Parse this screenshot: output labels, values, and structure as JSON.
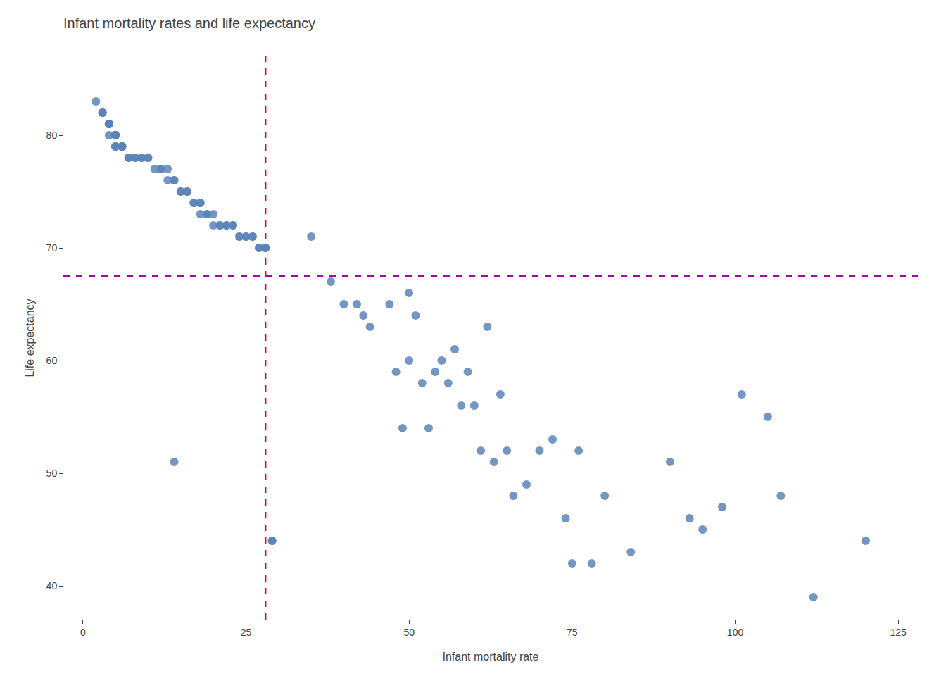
{
  "chart_data": {
    "type": "scatter",
    "title": "Infant mortality rates and life expectancy",
    "xlabel": "Infant mortality rate",
    "ylabel": "Life expectancy",
    "color": "#5b84b8",
    "marker": "circle",
    "grid": false,
    "xlim": [
      -3,
      128
    ],
    "ylim": [
      37,
      87
    ],
    "xticks": [
      0,
      25,
      50,
      75,
      100,
      125
    ],
    "yticks": [
      40,
      50,
      60,
      70,
      80
    ],
    "vline": {
      "x": 28,
      "color": "#EE0000",
      "line_style": "dashed"
    },
    "hline": {
      "y": 67.5,
      "color": "#AA00AA",
      "line_style": "dashed"
    },
    "x": [
      2,
      3,
      3,
      3,
      4,
      4,
      4,
      4,
      4,
      4,
      4,
      5,
      5,
      5,
      5,
      5,
      5,
      5,
      5,
      6,
      6,
      6,
      6,
      6,
      7,
      7,
      8,
      8,
      9,
      9,
      10,
      10,
      11,
      12,
      12,
      13,
      13,
      14,
      14,
      15,
      15,
      16,
      16,
      17,
      17,
      18,
      18,
      18,
      19,
      19,
      20,
      20,
      21,
      21,
      22,
      22,
      23,
      23,
      24,
      24,
      25,
      25,
      26,
      26,
      27,
      27,
      28,
      28,
      28,
      14,
      29,
      29,
      35,
      38,
      40,
      42,
      43,
      44,
      47,
      48,
      49,
      50,
      50,
      51,
      52,
      53,
      54,
      55,
      56,
      57,
      58,
      59,
      60,
      61,
      62,
      63,
      64,
      65,
      66,
      68,
      70,
      72,
      74,
      75,
      76,
      78,
      80,
      84,
      90,
      93,
      95,
      98,
      101,
      105,
      107,
      112,
      120
    ],
    "values": [
      83,
      82,
      82,
      82,
      81,
      81,
      81,
      81,
      81,
      81,
      80,
      80,
      80,
      80,
      80,
      80,
      79,
      79,
      79,
      79,
      79,
      79,
      79,
      79,
      78,
      78,
      78,
      78,
      78,
      78,
      78,
      78,
      77,
      77,
      77,
      77,
      76,
      76,
      76,
      75,
      75,
      75,
      75,
      74,
      74,
      74,
      74,
      73,
      73,
      73,
      73,
      72,
      72,
      72,
      72,
      72,
      72,
      72,
      71,
      71,
      71,
      71,
      71,
      71,
      70,
      70,
      70,
      70,
      70,
      51,
      44,
      44,
      71,
      67,
      65,
      65,
      64,
      63,
      65,
      59,
      54,
      60,
      66,
      64,
      58,
      54,
      59,
      60,
      58,
      61,
      56,
      59,
      56,
      52,
      63,
      51,
      57,
      52,
      48,
      49,
      52,
      53,
      46,
      42,
      52,
      42,
      48,
      43,
      51,
      46,
      45,
      47,
      57,
      55,
      48,
      39,
      44
    ]
  }
}
